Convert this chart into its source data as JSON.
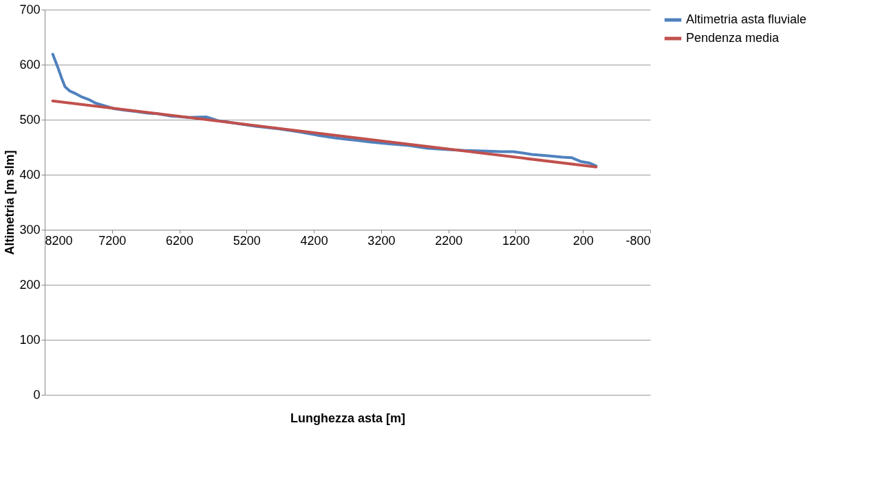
{
  "chart_data": {
    "type": "line",
    "xlabel": "Lunghezza asta [m]",
    "ylabel": "Altimetria [m slm]",
    "xlim": [
      8200,
      -800
    ],
    "xticks": [
      8200,
      7200,
      6200,
      5200,
      4200,
      3200,
      2200,
      1200,
      200,
      -800
    ],
    "ylim": [
      0,
      700
    ],
    "yticks": [
      0,
      100,
      200,
      300,
      400,
      500,
      600,
      700
    ],
    "grid": "y",
    "legend": "right",
    "marker": "none",
    "line_style": "solid",
    "series": [
      {
        "name": "Altimetria asta fluviale",
        "color": "#4f81bd",
        "x": [
          8081,
          8008,
          7944,
          7899,
          7826,
          7735,
          7643,
          7534,
          7443,
          7306,
          7169,
          6987,
          6850,
          6667,
          6530,
          6348,
          6074,
          5800,
          5617,
          5343,
          5069,
          4704,
          4430,
          4157,
          3883,
          3609,
          3335,
          3061,
          2787,
          2514,
          2240,
          1966,
          1692,
          1418,
          1236,
          962,
          688,
          506,
          369,
          232,
          95,
          4
        ],
        "values": [
          619,
          596,
          574,
          560,
          552,
          547,
          541,
          536,
          530,
          525,
          520,
          517,
          515,
          512,
          511,
          507,
          504,
          505,
          498,
          493,
          488,
          483,
          478,
          472,
          467,
          463,
          459,
          456,
          453,
          448,
          446,
          444,
          443,
          442,
          442,
          437,
          434,
          432,
          431,
          424,
          421,
          416
        ]
      },
      {
        "name": "Pendenza media",
        "color": "#c0504d",
        "x": [
          8081,
          4
        ],
        "values": [
          534,
          414
        ]
      }
    ]
  }
}
